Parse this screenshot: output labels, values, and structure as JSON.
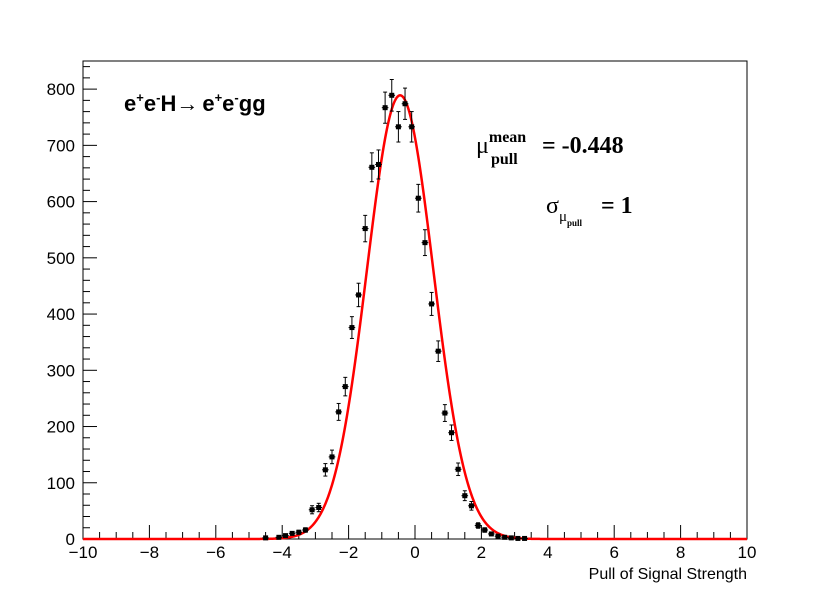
{
  "chart_data": {
    "type": "scatter",
    "xlabel": "Pull of Signal Strength",
    "ylabel": "",
    "xlim": [
      -10,
      10
    ],
    "ylim": [
      0,
      850
    ],
    "x_ticks": [
      -10,
      -8,
      -6,
      -4,
      -2,
      0,
      2,
      4,
      6,
      8,
      10
    ],
    "y_ticks": [
      0,
      100,
      200,
      300,
      400,
      500,
      600,
      700,
      800
    ],
    "grid": false,
    "legend": "none",
    "series": [
      {
        "style": "points-with-errorbars",
        "color": "#000000",
        "x": [
          -4.5,
          -4.1,
          -3.9,
          -3.7,
          -3.5,
          -3.3,
          -3.1,
          -2.9,
          -2.7,
          -2.5,
          -2.3,
          -2.1,
          -1.9,
          -1.7,
          -1.5,
          -1.3,
          -1.1,
          -0.9,
          -0.7,
          -0.5,
          -0.3,
          -0.1,
          0.1,
          0.3,
          0.5,
          0.7,
          0.9,
          1.1,
          1.3,
          1.5,
          1.7,
          1.9,
          2.1,
          2.3,
          2.5,
          2.7,
          2.9,
          3.1,
          3.3
        ],
        "y": [
          2,
          3,
          6,
          10,
          12,
          16,
          52,
          56,
          123,
          146,
          226,
          271,
          376,
          434,
          552,
          661,
          666,
          767,
          789,
          733,
          774,
          733,
          606,
          527,
          418,
          334,
          224,
          189,
          124,
          77,
          59,
          24,
          16,
          9,
          5,
          3,
          2,
          1,
          1
        ]
      },
      {
        "style": "gaussian-fit",
        "color": "#ff0000",
        "amplitude": 789,
        "mean": -0.448,
        "sigma": 1
      }
    ]
  },
  "annotations": {
    "process": {
      "e1": "e",
      "plus1": "+",
      "e2": "e",
      "minus1": "-",
      "higgs": "H",
      "arrow": "→",
      "e3": "e",
      "plus2": "+",
      "e4": "e",
      "minus2": "-",
      "final": "gg"
    },
    "mean_stat": {
      "symbol": "μ",
      "sup": "mean",
      "sub": "pull",
      "value": "= -0.448"
    },
    "sigma_stat": {
      "symbol": "σ",
      "sub_symbol": "μ",
      "sub_sub": "pull",
      "value": "= 1"
    }
  }
}
